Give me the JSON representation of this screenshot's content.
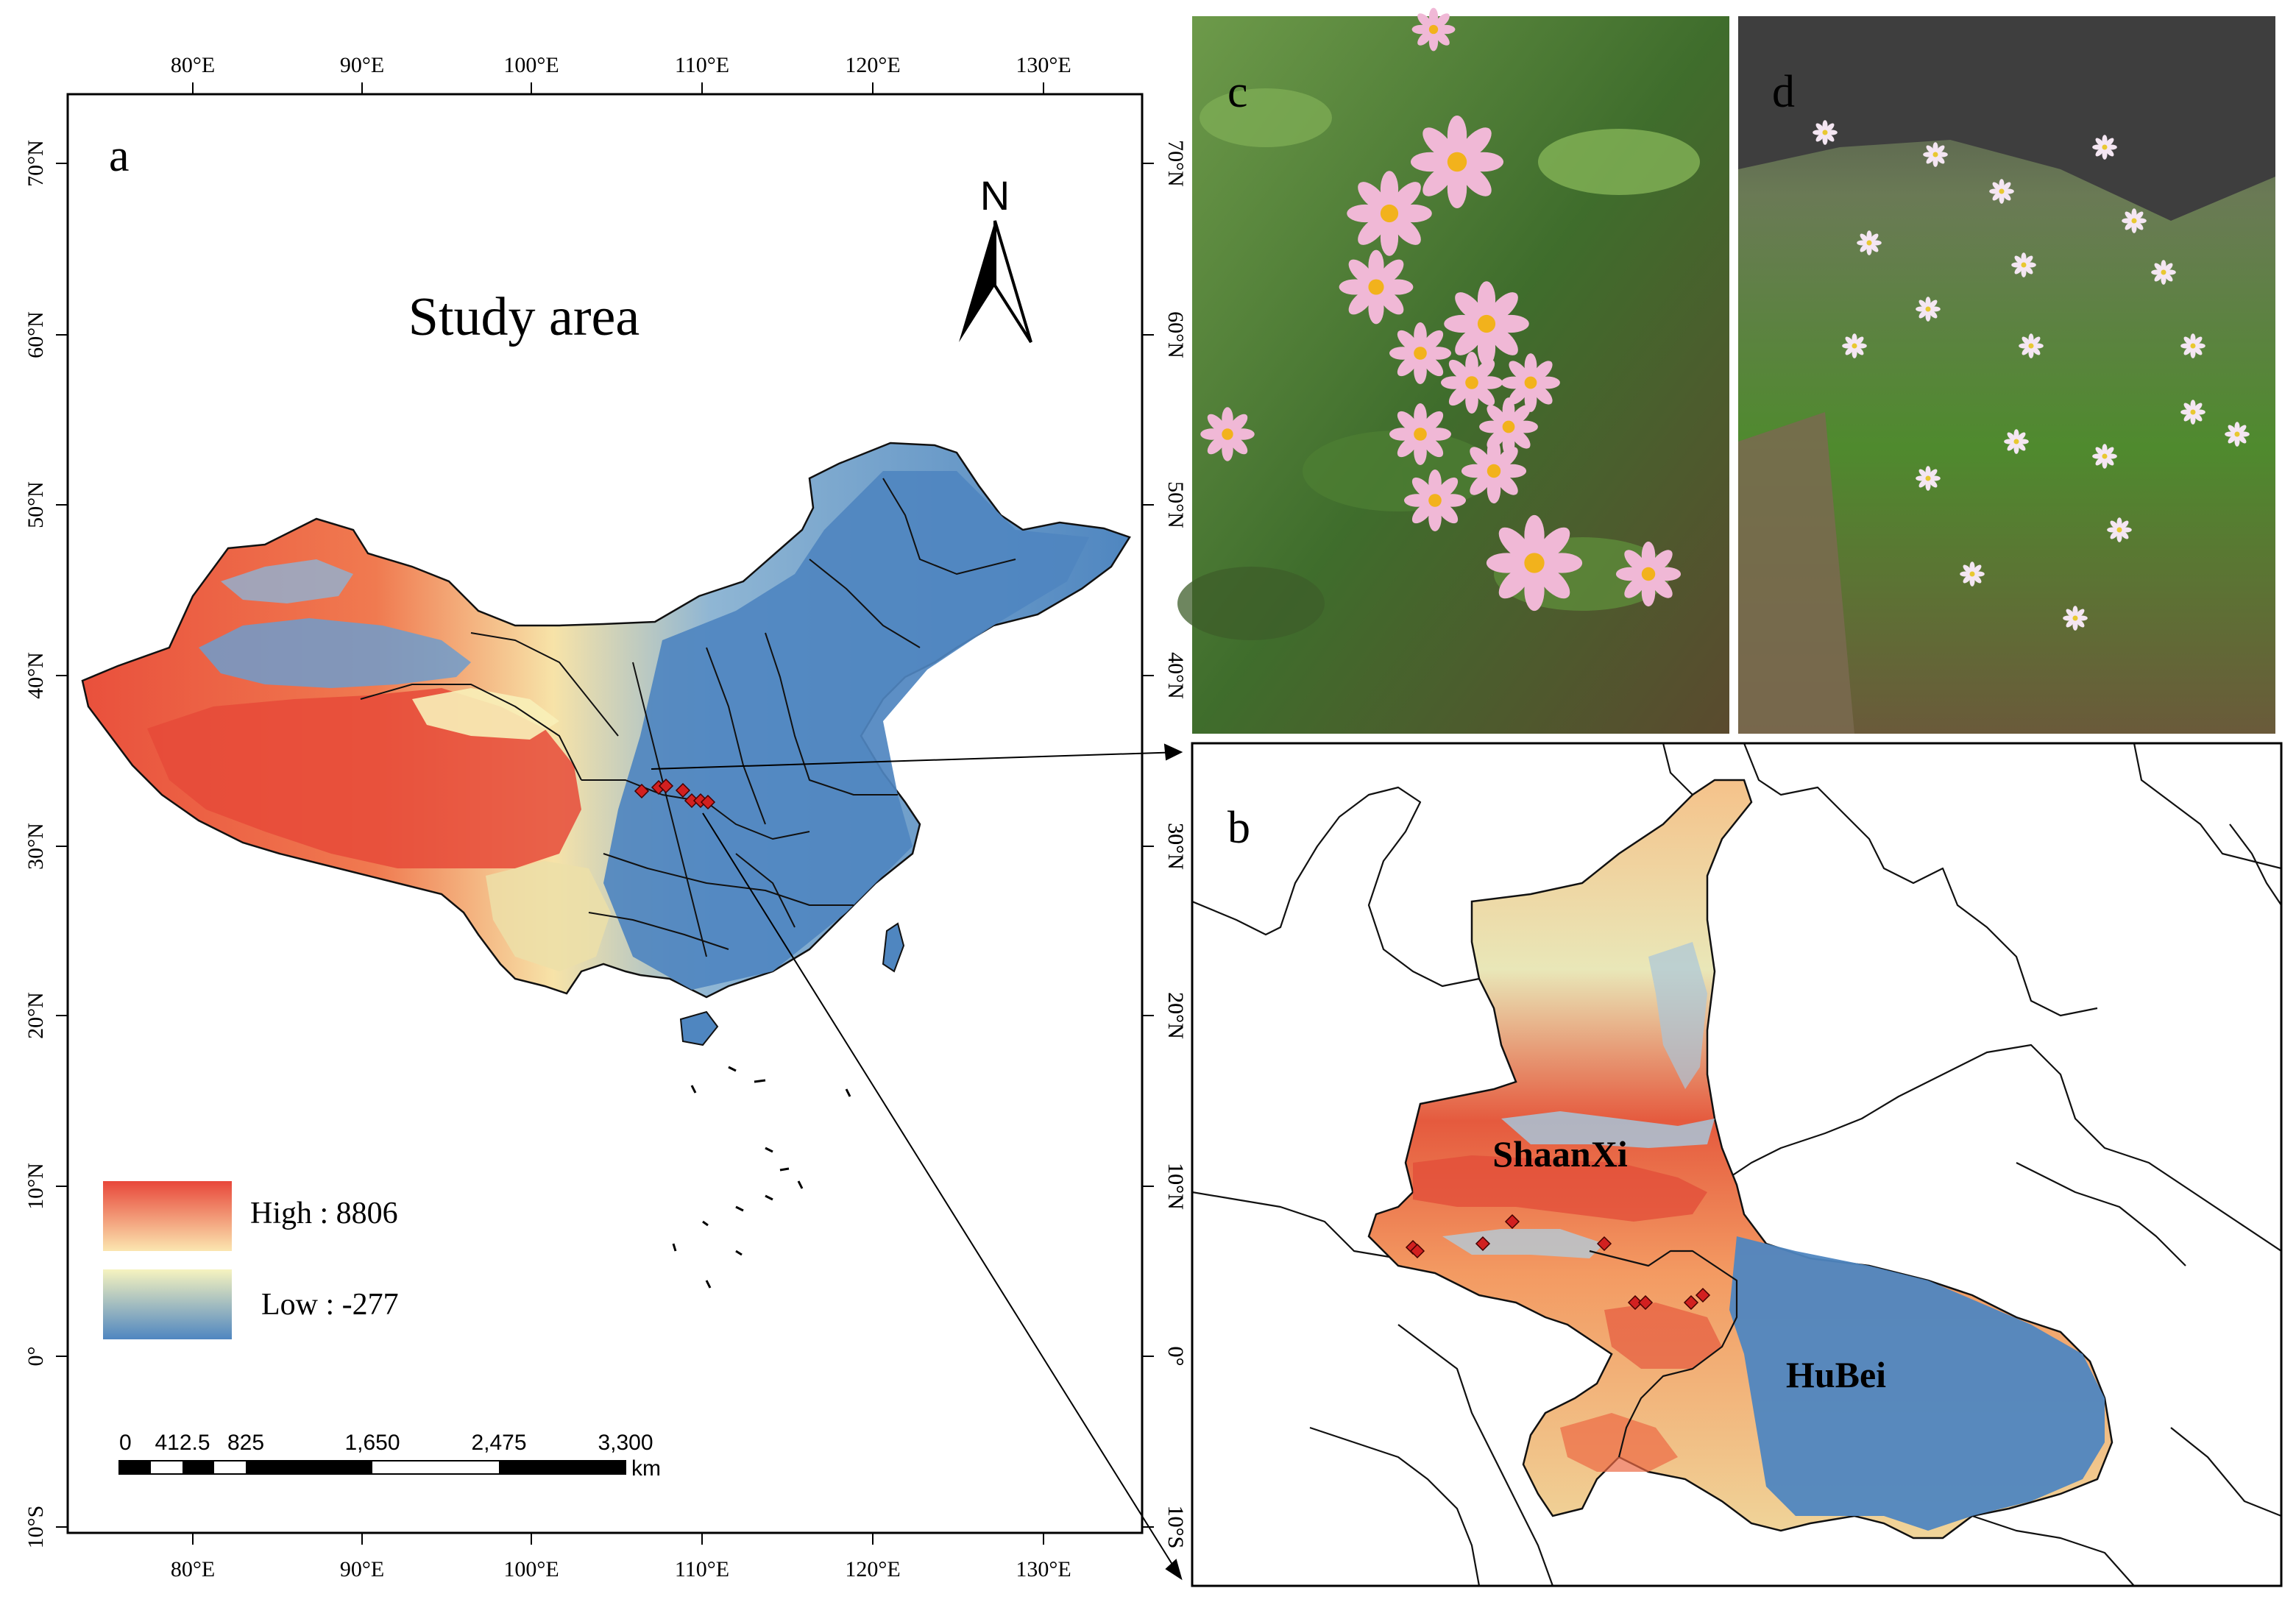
{
  "panel_a": {
    "label": "a",
    "title": "Study area",
    "north_label": "N",
    "lon_ticks": [
      "80°E",
      "90°E",
      "100°E",
      "110°E",
      "120°E",
      "130°E"
    ],
    "lat_ticks": [
      "70°N",
      "60°N",
      "50°N",
      "40°N",
      "30°N",
      "20°N",
      "10°N",
      "0°",
      "10°S"
    ],
    "legend": {
      "high_label": "High : 8806",
      "low_label": "Low : -277",
      "high_color": "#e8473a",
      "low_color": "#4f86c0"
    },
    "scale_bar": {
      "ticks": [
        "0",
        "412.5",
        "825",
        "1,650",
        "2,475",
        "3,300"
      ],
      "unit": "km"
    }
  },
  "panel_b": {
    "label": "b",
    "region_labels": [
      "ShaanXi",
      "HuBei"
    ],
    "lon_ticks": [],
    "lat_ticks": [
      "30°N",
      "20°N",
      "10°N",
      "0°",
      "10°S"
    ]
  },
  "panel_c": {
    "label": "c"
  },
  "panel_d": {
    "label": "d"
  },
  "colors": {
    "elevation_high": "#e8473a",
    "elevation_mid": "#f6f3bf",
    "elevation_low": "#4f86c0",
    "sample_point": "#d22020"
  }
}
